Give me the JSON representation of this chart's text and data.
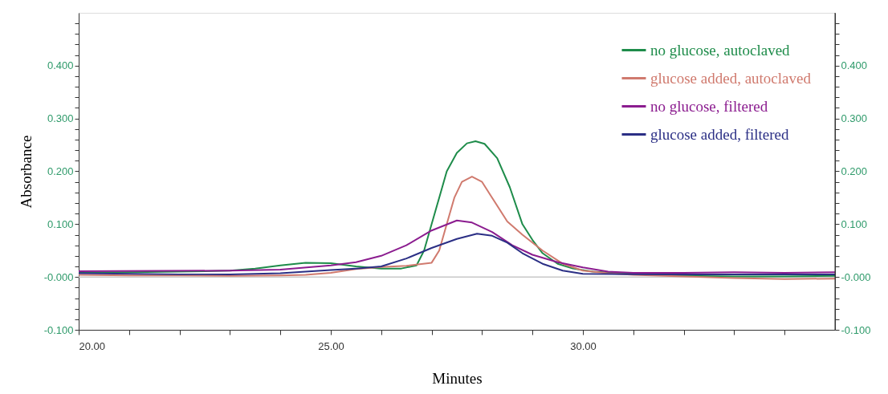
{
  "chart_data": {
    "type": "line",
    "xlabel": "Minutes",
    "ylabel": "Absorbance",
    "xlim": [
      20,
      35
    ],
    "ylim": [
      -0.1,
      0.5
    ],
    "y2lim": [
      -0.1,
      0.5
    ],
    "xticks": [
      {
        "value": 20,
        "label": "20.00"
      },
      {
        "value": 21,
        "label": null
      },
      {
        "value": 22,
        "label": null
      },
      {
        "value": 23,
        "label": null
      },
      {
        "value": 24,
        "label": null
      },
      {
        "value": 25,
        "label": "25.00"
      },
      {
        "value": 26,
        "label": null
      },
      {
        "value": 27,
        "label": null
      },
      {
        "value": 28,
        "label": null
      },
      {
        "value": 29,
        "label": null
      },
      {
        "value": 30,
        "label": "30.00"
      },
      {
        "value": 31,
        "label": null
      },
      {
        "value": 32,
        "label": null
      },
      {
        "value": 33,
        "label": null
      },
      {
        "value": 34,
        "label": null
      }
    ],
    "yticks": [
      {
        "value": -0.1,
        "label": "-0.100"
      },
      {
        "value": -0.08,
        "label": null
      },
      {
        "value": -0.06,
        "label": null
      },
      {
        "value": -0.04,
        "label": null
      },
      {
        "value": -0.02,
        "label": null
      },
      {
        "value": 0,
        "label": "-0.000"
      },
      {
        "value": 0.02,
        "label": null
      },
      {
        "value": 0.04,
        "label": null
      },
      {
        "value": 0.06,
        "label": null
      },
      {
        "value": 0.08,
        "label": null
      },
      {
        "value": 0.1,
        "label": "0.100"
      },
      {
        "value": 0.12,
        "label": null
      },
      {
        "value": 0.14,
        "label": null
      },
      {
        "value": 0.16,
        "label": null
      },
      {
        "value": 0.18,
        "label": null
      },
      {
        "value": 0.2,
        "label": "0.200"
      },
      {
        "value": 0.22,
        "label": null
      },
      {
        "value": 0.24,
        "label": null
      },
      {
        "value": 0.26,
        "label": null
      },
      {
        "value": 0.28,
        "label": null
      },
      {
        "value": 0.3,
        "label": "0.300"
      },
      {
        "value": 0.32,
        "label": null
      },
      {
        "value": 0.34,
        "label": null
      },
      {
        "value": 0.36,
        "label": null
      },
      {
        "value": 0.38,
        "label": null
      },
      {
        "value": 0.4,
        "label": "0.400"
      },
      {
        "value": 0.42,
        "label": null
      },
      {
        "value": 0.44,
        "label": null
      },
      {
        "value": 0.46,
        "label": null
      },
      {
        "value": 0.48,
        "label": null
      }
    ],
    "y2ticks": [
      {
        "value": -0.1,
        "label": "-0.100"
      },
      {
        "value": -0.08,
        "label": null
      },
      {
        "value": -0.06,
        "label": null
      },
      {
        "value": -0.04,
        "label": null
      },
      {
        "value": -0.02,
        "label": null
      },
      {
        "value": 0,
        "label": "-0.000"
      },
      {
        "value": 0.02,
        "label": null
      },
      {
        "value": 0.04,
        "label": null
      },
      {
        "value": 0.06,
        "label": null
      },
      {
        "value": 0.08,
        "label": null
      },
      {
        "value": 0.1,
        "label": "0.100"
      },
      {
        "value": 0.12,
        "label": null
      },
      {
        "value": 0.14,
        "label": null
      },
      {
        "value": 0.16,
        "label": null
      },
      {
        "value": 0.18,
        "label": null
      },
      {
        "value": 0.2,
        "label": "0.200"
      },
      {
        "value": 0.22,
        "label": null
      },
      {
        "value": 0.24,
        "label": null
      },
      {
        "value": 0.26,
        "label": null
      },
      {
        "value": 0.28,
        "label": null
      },
      {
        "value": 0.3,
        "label": "0.300"
      },
      {
        "value": 0.32,
        "label": null
      },
      {
        "value": 0.34,
        "label": null
      },
      {
        "value": 0.36,
        "label": null
      },
      {
        "value": 0.38,
        "label": null
      },
      {
        "value": 0.4,
        "label": "0.400"
      },
      {
        "value": 0.42,
        "label": null
      },
      {
        "value": 0.44,
        "label": null
      },
      {
        "value": 0.46,
        "label": null
      },
      {
        "value": 0.48,
        "label": null
      }
    ],
    "grid": false,
    "legend": "top right",
    "marker": "none",
    "line_style": "solid",
    "ref_lines": [
      {
        "axis": "y",
        "value": 0,
        "color": "#c8c8c8"
      }
    ],
    "series": [
      {
        "name": "no glucose, autoclaved",
        "color": "#1e8c4a",
        "x": [
          20,
          21,
          22,
          23,
          23.5,
          24,
          24.5,
          25,
          25.5,
          26,
          26.4,
          26.7,
          26.85,
          27.0,
          27.15,
          27.3,
          27.5,
          27.7,
          27.87,
          28.05,
          28.3,
          28.55,
          28.8,
          29.0,
          29.2,
          29.5,
          29.8,
          30.2,
          31,
          32,
          33,
          34,
          35
        ],
        "values": [
          0.008,
          0.009,
          0.01,
          0.012,
          0.016,
          0.022,
          0.027,
          0.026,
          0.02,
          0.016,
          0.016,
          0.022,
          0.05,
          0.1,
          0.15,
          0.2,
          0.235,
          0.253,
          0.257,
          0.252,
          0.225,
          0.17,
          0.1,
          0.07,
          0.045,
          0.025,
          0.016,
          0.01,
          0.006,
          0.002,
          0.001,
          0.001,
          0.002
        ]
      },
      {
        "name": "glucose added, autoclaved",
        "color": "#d07a6e",
        "x": [
          20,
          21,
          22,
          23,
          24,
          24.5,
          25,
          25.5,
          26,
          26.5,
          27.0,
          27.15,
          27.3,
          27.45,
          27.6,
          27.8,
          28.0,
          28.2,
          28.5,
          28.8,
          29.2,
          29.6,
          30,
          30.5,
          31,
          32,
          33,
          34,
          35
        ],
        "values": [
          0.004,
          0.003,
          0.003,
          0.002,
          0.003,
          0.004,
          0.008,
          0.015,
          0.019,
          0.021,
          0.027,
          0.05,
          0.1,
          0.15,
          0.18,
          0.19,
          0.18,
          0.15,
          0.105,
          0.08,
          0.05,
          0.025,
          0.012,
          0.007,
          0.004,
          0.001,
          -0.002,
          -0.004,
          -0.003
        ]
      },
      {
        "name": "no glucose, filtered",
        "color": "#8b1c8f",
        "x": [
          20,
          23,
          24,
          25,
          25.5,
          26,
          26.5,
          27,
          27.5,
          27.8,
          28.2,
          28.6,
          29,
          29.5,
          30,
          30.5,
          31,
          32,
          33,
          34,
          35
        ],
        "values": [
          0.011,
          0.012,
          0.014,
          0.022,
          0.028,
          0.04,
          0.06,
          0.088,
          0.107,
          0.103,
          0.085,
          0.06,
          0.042,
          0.028,
          0.018,
          0.01,
          0.008,
          0.008,
          0.009,
          0.008,
          0.009
        ]
      },
      {
        "name": "glucose added, filtered",
        "color": "#2b2f85",
        "x": [
          20,
          22,
          23,
          24,
          25,
          25.5,
          26,
          26.5,
          27,
          27.5,
          27.9,
          28.2,
          28.5,
          28.8,
          29.2,
          29.6,
          30,
          31,
          32,
          33,
          34,
          35
        ],
        "values": [
          0.007,
          0.005,
          0.005,
          0.007,
          0.013,
          0.016,
          0.02,
          0.035,
          0.055,
          0.072,
          0.082,
          0.078,
          0.065,
          0.045,
          0.025,
          0.012,
          0.006,
          0.005,
          0.005,
          0.005,
          0.005,
          0.005
        ]
      }
    ]
  }
}
